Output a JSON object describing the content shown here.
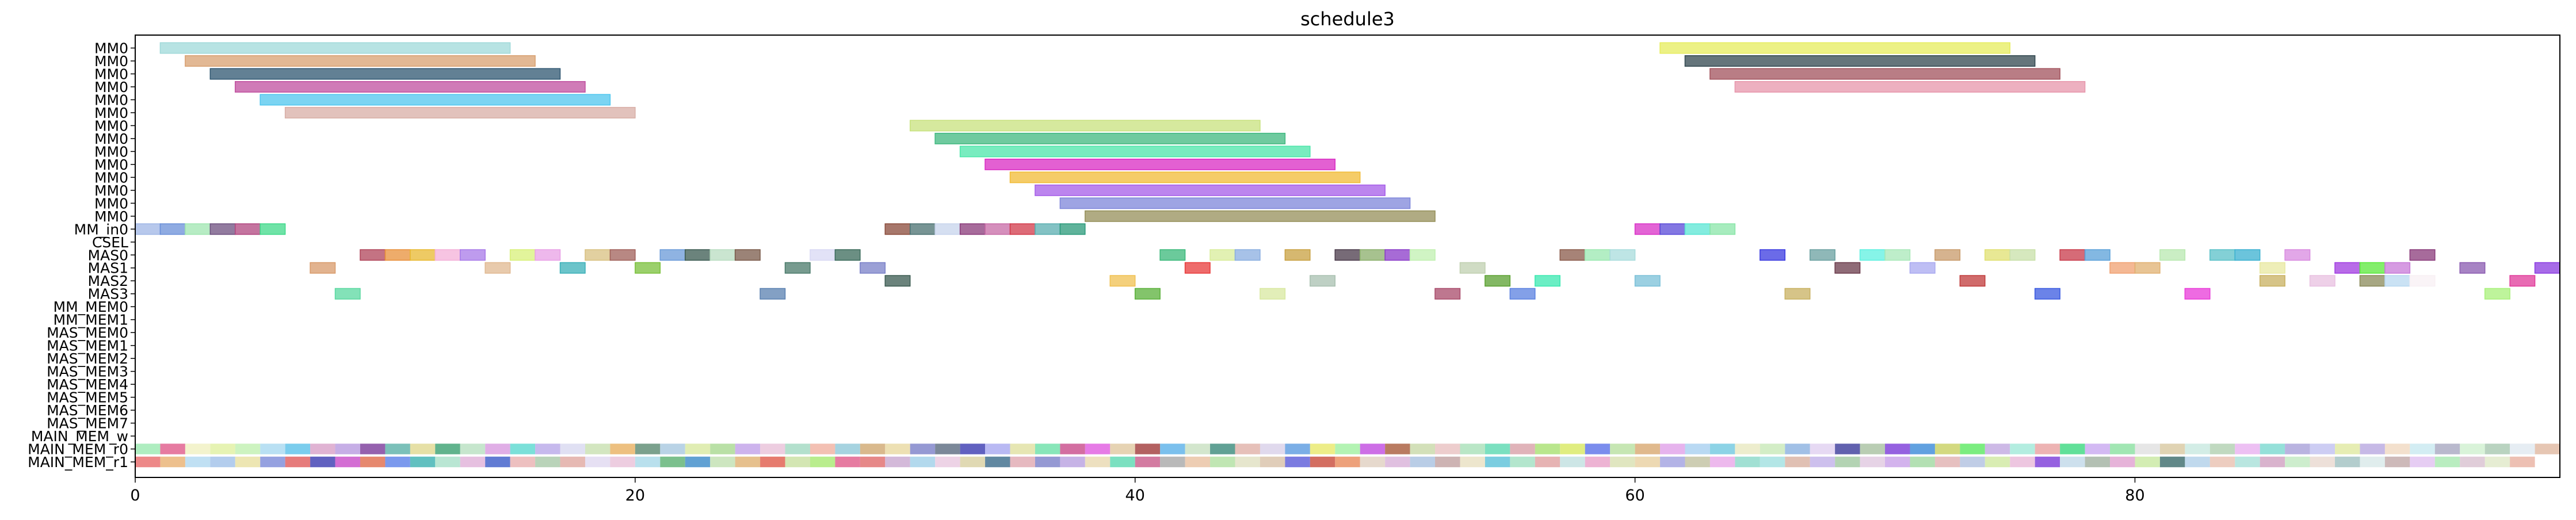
{
  "chart_data": {
    "type": "gantt",
    "title": "schedule3",
    "xlabel": "",
    "ylabel": "",
    "xlim": [
      0,
      97
    ],
    "xticks": [
      0,
      20,
      40,
      60,
      80
    ],
    "grid": false,
    "rows": [
      "MM0",
      "MM0",
      "MM0",
      "MM0",
      "MM0",
      "MM0",
      "MM0",
      "MM0",
      "MM0",
      "MM0",
      "MM0",
      "MM0",
      "MM0",
      "MM0",
      "MM_in0",
      "CSEL",
      "MAS0",
      "MAS1",
      "MAS2",
      "MAS3",
      "MM_MEM0",
      "MM_MEM1",
      "MAS_MEM0",
      "MAS_MEM1",
      "MAS_MEM2",
      "MAS_MEM3",
      "MAS_MEM4",
      "MAS_MEM5",
      "MAS_MEM6",
      "MAS_MEM7",
      "MAIN_MEM_w",
      "MAIN_MEM_r0",
      "MAIN_MEM_r1"
    ],
    "tasks": [
      {
        "row": 0,
        "start": 1,
        "end": 15,
        "color": "#9fd9d9"
      },
      {
        "row": 0,
        "start": 61,
        "end": 75,
        "color": "#e6ec5c"
      },
      {
        "row": 1,
        "start": 2,
        "end": 16,
        "color": "#d8a070"
      },
      {
        "row": 1,
        "start": 62,
        "end": 76,
        "color": "#31474f"
      },
      {
        "row": 2,
        "start": 3,
        "end": 17,
        "color": "#2e5670"
      },
      {
        "row": 2,
        "start": 63,
        "end": 77,
        "color": "#a2525c"
      },
      {
        "row": 3,
        "start": 4,
        "end": 18,
        "color": "#c04f9f"
      },
      {
        "row": 3,
        "start": 64,
        "end": 78,
        "color": "#e796ab"
      },
      {
        "row": 4,
        "start": 5,
        "end": 19,
        "color": "#4fc6ee"
      },
      {
        "row": 5,
        "start": 6,
        "end": 20,
        "color": "#d8aea6"
      },
      {
        "row": 6,
        "start": 31,
        "end": 45,
        "color": "#c8e27e"
      },
      {
        "row": 7,
        "start": 32,
        "end": 46,
        "color": "#3fb87f"
      },
      {
        "row": 8,
        "start": 33,
        "end": 47,
        "color": "#4be6a9"
      },
      {
        "row": 9,
        "start": 34,
        "end": 48,
        "color": "#d92bc3"
      },
      {
        "row": 10,
        "start": 35,
        "end": 49,
        "color": "#f1bb36"
      },
      {
        "row": 11,
        "start": 36,
        "end": 50,
        "color": "#a55ce8"
      },
      {
        "row": 12,
        "start": 37,
        "end": 51,
        "color": "#7e86da"
      },
      {
        "row": 13,
        "start": 38,
        "end": 52,
        "color": "#958f59"
      },
      {
        "row": 14,
        "start": 0,
        "end": 1,
        "color": "#9fb6e6"
      },
      {
        "row": 14,
        "start": 1,
        "end": 2,
        "color": "#6a8fd8"
      },
      {
        "row": 14,
        "start": 2,
        "end": 3,
        "color": "#9fe6b0"
      },
      {
        "row": 14,
        "start": 3,
        "end": 4,
        "color": "#6d4f7f"
      },
      {
        "row": 14,
        "start": 4,
        "end": 5,
        "color": "#b0457f"
      },
      {
        "row": 14,
        "start": 5,
        "end": 6,
        "color": "#3fd98a"
      },
      {
        "row": 14,
        "start": 30,
        "end": 31,
        "color": "#8a4a3a"
      },
      {
        "row": 14,
        "start": 31,
        "end": 32,
        "color": "#4a7070"
      },
      {
        "row": 14,
        "start": 32,
        "end": 33,
        "color": "#c7d4ec"
      },
      {
        "row": 14,
        "start": 33,
        "end": 34,
        "color": "#8a3a7a"
      },
      {
        "row": 14,
        "start": 34,
        "end": 35,
        "color": "#c76aa6"
      },
      {
        "row": 14,
        "start": 35,
        "end": 36,
        "color": "#d23a4a"
      },
      {
        "row": 14,
        "start": 36,
        "end": 37,
        "color": "#5aaeb0"
      },
      {
        "row": 14,
        "start": 37,
        "end": 38,
        "color": "#2a9a7a"
      },
      {
        "row": 14,
        "start": 60,
        "end": 61,
        "color": "#d930c7"
      },
      {
        "row": 14,
        "start": 61,
        "end": 62,
        "color": "#5a4ad8"
      },
      {
        "row": 14,
        "start": 62,
        "end": 63,
        "color": "#5ae6d4"
      },
      {
        "row": 14,
        "start": 63,
        "end": 64,
        "color": "#8ae6a8"
      },
      {
        "row": 16,
        "start": 9,
        "end": 10,
        "color": "#b0445a"
      },
      {
        "row": 16,
        "start": 10,
        "end": 11,
        "color": "#e8903a"
      },
      {
        "row": 16,
        "start": 11,
        "end": 12,
        "color": "#e8b830"
      },
      {
        "row": 16,
        "start": 12,
        "end": 13,
        "color": "#f4b0d8"
      },
      {
        "row": 16,
        "start": 13,
        "end": 14,
        "color": "#a87ae8"
      },
      {
        "row": 16,
        "start": 15,
        "end": 16,
        "color": "#d8f07a"
      },
      {
        "row": 16,
        "start": 16,
        "end": 17,
        "color": "#e8a0e6"
      },
      {
        "row": 16,
        "start": 18,
        "end": 19,
        "color": "#d8c080"
      },
      {
        "row": 16,
        "start": 19,
        "end": 20,
        "color": "#a0605a"
      },
      {
        "row": 16,
        "start": 21,
        "end": 22,
        "color": "#6a9ad8"
      },
      {
        "row": 16,
        "start": 22,
        "end": 23,
        "color": "#3a5a50"
      },
      {
        "row": 16,
        "start": 23,
        "end": 24,
        "color": "#b8dcc0"
      },
      {
        "row": 16,
        "start": 24,
        "end": 25,
        "color": "#7a5a4a"
      },
      {
        "row": 16,
        "start": 27,
        "end": 28,
        "color": "#d8d8f4"
      },
      {
        "row": 16,
        "start": 28,
        "end": 29,
        "color": "#3a6a5a"
      },
      {
        "row": 16,
        "start": 41,
        "end": 42,
        "color": "#3ab87a"
      },
      {
        "row": 16,
        "start": 43,
        "end": 44,
        "color": "#d8ec9a"
      },
      {
        "row": 16,
        "start": 44,
        "end": 45,
        "color": "#8aaee0"
      },
      {
        "row": 16,
        "start": 46,
        "end": 47,
        "color": "#c8a040"
      },
      {
        "row": 16,
        "start": 48,
        "end": 49,
        "color": "#4a3a4a"
      },
      {
        "row": 16,
        "start": 49,
        "end": 50,
        "color": "#8aae6a"
      },
      {
        "row": 16,
        "start": 50,
        "end": 51,
        "color": "#8a3ac8"
      },
      {
        "row": 16,
        "start": 51,
        "end": 52,
        "color": "#c0f0b0"
      },
      {
        "row": 16,
        "start": 57,
        "end": 58,
        "color": "#8a5a4a"
      },
      {
        "row": 16,
        "start": 58,
        "end": 59,
        "color": "#9ae8b0"
      },
      {
        "row": 16,
        "start": 59,
        "end": 60,
        "color": "#a8dcdc"
      },
      {
        "row": 16,
        "start": 65,
        "end": 66,
        "color": "#3a3ae0"
      },
      {
        "row": 16,
        "start": 67,
        "end": 68,
        "color": "#6aa0a0"
      },
      {
        "row": 16,
        "start": 69,
        "end": 70,
        "color": "#5ef0e0"
      },
      {
        "row": 16,
        "start": 70,
        "end": 71,
        "color": "#a8e8b8"
      },
      {
        "row": 16,
        "start": 72,
        "end": 73,
        "color": "#c89a6a"
      },
      {
        "row": 16,
        "start": 74,
        "end": 75,
        "color": "#e0e070"
      },
      {
        "row": 16,
        "start": 75,
        "end": 76,
        "color": "#c8e0a8"
      },
      {
        "row": 16,
        "start": 77,
        "end": 78,
        "color": "#c83a4a"
      },
      {
        "row": 16,
        "start": 78,
        "end": 79,
        "color": "#5aa0d8"
      },
      {
        "row": 16,
        "start": 81,
        "end": 82,
        "color": "#b8e8b0"
      },
      {
        "row": 16,
        "start": 83,
        "end": 84,
        "color": "#5ac0c8"
      },
      {
        "row": 16,
        "start": 84,
        "end": 85,
        "color": "#3ab0d0"
      },
      {
        "row": 16,
        "start": 86,
        "end": 87,
        "color": "#d88ae0"
      },
      {
        "row": 16,
        "start": 91,
        "end": 92,
        "color": "#8a3a7a"
      },
      {
        "row": 17,
        "start": 7,
        "end": 8,
        "color": "#d89a6a"
      },
      {
        "row": 17,
        "start": 14,
        "end": 15,
        "color": "#e0b890"
      },
      {
        "row": 17,
        "start": 17,
        "end": 18,
        "color": "#3ab0b8"
      },
      {
        "row": 17,
        "start": 20,
        "end": 21,
        "color": "#7ac03a"
      },
      {
        "row": 17,
        "start": 26,
        "end": 27,
        "color": "#4a7a6a"
      },
      {
        "row": 17,
        "start": 29,
        "end": 30,
        "color": "#7a80c8"
      },
      {
        "row": 17,
        "start": 42,
        "end": 43,
        "color": "#e83a3a"
      },
      {
        "row": 17,
        "start": 53,
        "end": 54,
        "color": "#c0d0b0"
      },
      {
        "row": 17,
        "start": 68,
        "end": 69,
        "color": "#6a3a4a"
      },
      {
        "row": 17,
        "start": 71,
        "end": 72,
        "color": "#a8a8f0"
      },
      {
        "row": 17,
        "start": 79,
        "end": 80,
        "color": "#f0a070"
      },
      {
        "row": 17,
        "start": 80,
        "end": 81,
        "color": "#e0b070"
      },
      {
        "row": 17,
        "start": 85,
        "end": 86,
        "color": "#e8e8a0"
      },
      {
        "row": 17,
        "start": 88,
        "end": 89,
        "color": "#a03ae0"
      },
      {
        "row": 17,
        "start": 89,
        "end": 90,
        "color": "#5ae83a"
      },
      {
        "row": 17,
        "start": 90,
        "end": 91,
        "color": "#c87ad8"
      },
      {
        "row": 17,
        "start": 93,
        "end": 94,
        "color": "#8a5ab0"
      },
      {
        "row": 17,
        "start": 96,
        "end": 97,
        "color": "#8a3ae0"
      },
      {
        "row": 18,
        "start": 30,
        "end": 31,
        "color": "#3a5a50"
      },
      {
        "row": 18,
        "start": 39,
        "end": 40,
        "color": "#f0c050"
      },
      {
        "row": 18,
        "start": 47,
        "end": 48,
        "color": "#a8c0b0"
      },
      {
        "row": 18,
        "start": 54,
        "end": 55,
        "color": "#5aa030"
      },
      {
        "row": 18,
        "start": 56,
        "end": 57,
        "color": "#3ae8b0"
      },
      {
        "row": 18,
        "start": 60,
        "end": 61,
        "color": "#7ac0d8"
      },
      {
        "row": 18,
        "start": 73,
        "end": 74,
        "color": "#c03a3a"
      },
      {
        "row": 18,
        "start": 85,
        "end": 86,
        "color": "#c8b060"
      },
      {
        "row": 18,
        "start": 87,
        "end": 88,
        "color": "#e8c0e0"
      },
      {
        "row": 18,
        "start": 89,
        "end": 90,
        "color": "#8a8a5a"
      },
      {
        "row": 18,
        "start": 90,
        "end": 91,
        "color": "#b8d8f0"
      },
      {
        "row": 18,
        "start": 91,
        "end": 92,
        "color": "#f8f0f4"
      },
      {
        "row": 18,
        "start": 95,
        "end": 96,
        "color": "#e03a9a"
      },
      {
        "row": 19,
        "start": 8,
        "end": 9,
        "color": "#5ad8a0"
      },
      {
        "row": 19,
        "start": 25,
        "end": 26,
        "color": "#5a80b0"
      },
      {
        "row": 19,
        "start": 40,
        "end": 41,
        "color": "#5ab03a"
      },
      {
        "row": 19,
        "start": 45,
        "end": 46,
        "color": "#d8e8a0"
      },
      {
        "row": 19,
        "start": 52,
        "end": 53,
        "color": "#a84a6a"
      },
      {
        "row": 19,
        "start": 55,
        "end": 56,
        "color": "#5a80e0"
      },
      {
        "row": 19,
        "start": 66,
        "end": 67,
        "color": "#c8b060"
      },
      {
        "row": 19,
        "start": 76,
        "end": 77,
        "color": "#3a5ae0"
      },
      {
        "row": 19,
        "start": 82,
        "end": 83,
        "color": "#e83ad8"
      },
      {
        "row": 19,
        "start": 94,
        "end": 95,
        "color": "#a8f07a"
      }
    ],
    "main_mem_r0_colors": [
      "#9ae8b0",
      "#e05a8a",
      "#f0f0c0",
      "#e0f0a0",
      "#c0f0b0",
      "#a8d8f0",
      "#5ac0e8",
      "#d8a0c8",
      "#b89ae0",
      "#7a3a9a",
      "#5ab0a8",
      "#e0d890",
      "#3aa070",
      "#b8e0c0",
      "#d89ae0",
      "#5ad8d0",
      "#b8a8e8",
      "#d8d8f0",
      "#c8e0b0",
      "#e8b060",
      "#5a8a70",
      "#a8c8e0",
      "#d8e8a0",
      "#a8d890",
      "#c0a0e8",
      "#e8c0d8",
      "#a0d8c0",
      "#f0b0a0",
      "#90c8d8",
      "#d0a870",
      "#e8d8a0",
      "#7a80c8",
      "#5a6a80",
      "#3a3ab0",
      "#a8a8f0",
      "#e0e0a0",
      "#6ae0a8",
      "#c84a8a",
      "#e05ae0",
      "#e0c8a0",
      "#a03a3a",
      "#5ab0e8",
      "#c8e0c0",
      "#3a8a7a",
      "#e0b0a8",
      "#d8d0e8",
      "#5a9ae0",
      "#e8e86a",
      "#a0f0a0",
      "#c04ae0",
      "#a85a3a",
      "#c8d8a8",
      "#e8c0c0",
      "#a8e0b8",
      "#5ad8b0",
      "#d8a0a8",
      "#a8e070",
      "#d8e860",
      "#5a70e8",
      "#b8e0a0",
      "#d8a870",
      "#e0a0e8",
      "#a8d0f0",
      "#70c8e0",
      "#e8e8c0",
      "#c8e8b8",
      "#8ab0e0",
      "#e0d0f0",
      "#3a3a9a",
      "#a8c0a0",
      "#7a3ad8",
      "#3a8ad8",
      "#c8d060",
      "#5ae860",
      "#c0a8e0",
      "#a0e8d8",
      "#e8a0a0",
      "#3ad880",
      "#c8a8f0",
      "#8ae0a0",
      "#e0e0e0",
      "#d8c8a0",
      "#c8e8e0",
      "#b0d0b0",
      "#e8b0f0",
      "#7ad8d0",
      "#a8a0d8",
      "#c0c0f0",
      "#e0e8a0",
      "#b8a8e0",
      "#f0d8c0",
      "#c8e8f0",
      "#a8a8c0",
      "#d0f0d0",
      "#a8c8b0",
      "#e0e8f0",
      "#e0b8a0"
    ],
    "main_mem_r1_colors": [
      "#e86a6a",
      "#e8b070",
      "#b0d8f0",
      "#a0c0e8",
      "#e8e0a0",
      "#7a8ad8",
      "#e05a5a",
      "#3a3ab0",
      "#c84ac8",
      "#e06a4a",
      "#5a80e8",
      "#3ab0b0",
      "#a8e0c8",
      "#e0b0d8",
      "#3a5ac8",
      "#e8b0b0",
      "#a8c8a8",
      "#e0a8a0",
      "#e0d8f0",
      "#e8c0d8",
      "#a8d8e8",
      "#5ab070",
      "#3a8ac8",
      "#c0e0b0",
      "#e0b070",
      "#e05a4a",
      "#c8e0a0",
      "#a8e870",
      "#e05a8a",
      "#e06a6a",
      "#c8a8d0",
      "#a0d0e8",
      "#e8c8e0",
      "#d8d0a0",
      "#3a6a8a",
      "#e0a8b0",
      "#7a80c8",
      "#b8a0e0",
      "#e8d8b0",
      "#5ad8b0",
      "#c85a8a",
      "#a8a8a8",
      "#e8c0a0",
      "#b0e0a0",
      "#e0e0c0",
      "#d8c0a8",
      "#5a5ad8",
      "#c84a3a",
      "#e88a5a",
      "#e0d0c0",
      "#d8b0d8",
      "#a8c0e0",
      "#c0a0a0",
      "#e8e0c0",
      "#5ac0d8",
      "#a0e0c0",
      "#e0a0a0",
      "#c0e0e0",
      "#e8a0c8",
      "#d8e0b0",
      "#e8d0a0",
      "#a0a0e0",
      "#c0c0a0",
      "#e8a8e8",
      "#8ad8c8",
      "#a0e0e0",
      "#d8b0a0",
      "#c0b0e8",
      "#a0c8a0",
      "#e0c8e0",
      "#c8a0e8",
      "#a0d8a0",
      "#e0b0b0",
      "#b0c0e0",
      "#d0e8a0",
      "#e8b8d8",
      "#7a3ad8",
      "#c0d8e8",
      "#a0b0a0",
      "#e0a0d0",
      "#c8e8a0",
      "#3a6a6a",
      "#b0d0e8",
      "#e8c0b0",
      "#a8e0d8",
      "#d0a0c0",
      "#c0e8c0",
      "#e8d8d0",
      "#a0c0c0",
      "#d8e8e8",
      "#c0a8a8",
      "#e0c0f0",
      "#a8e8b0",
      "#d8c0d0",
      "#e0e8c8",
      "#e8b0a0"
    ]
  }
}
